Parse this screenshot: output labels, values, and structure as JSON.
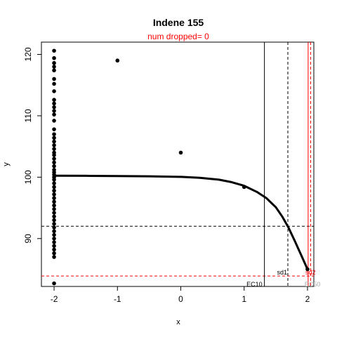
{
  "chart_data": {
    "type": "scatter",
    "title": "Indene 155",
    "subtitle": "num dropped= 0",
    "xlabel": "x",
    "ylabel": "y",
    "xlim": [
      -2.2,
      2.1
    ],
    "ylim": [
      82.2,
      122
    ],
    "x_ticks": [
      -2,
      -1,
      0,
      1,
      2
    ],
    "y_ticks": [
      90,
      100,
      110,
      120
    ],
    "x_tick_labels": [
      "-2",
      "-1",
      "0",
      "1",
      "2"
    ],
    "y_tick_labels": [
      "90",
      "100",
      "110",
      "120"
    ],
    "colors": {
      "points": "#000000",
      "curve": "#000000",
      "reference": "#ff0000",
      "faint": "#aaaaaa"
    },
    "points": [
      {
        "x": -2,
        "y": 120.6
      },
      {
        "x": -2,
        "y": 119.4
      },
      {
        "x": -2,
        "y": 118.6
      },
      {
        "x": -2,
        "y": 118.0
      },
      {
        "x": -2,
        "y": 117.4
      },
      {
        "x": -2,
        "y": 116.0
      },
      {
        "x": -2,
        "y": 115.2
      },
      {
        "x": -2,
        "y": 114.0
      },
      {
        "x": -2,
        "y": 112.6
      },
      {
        "x": -2,
        "y": 112.0
      },
      {
        "x": -2,
        "y": 111.4
      },
      {
        "x": -2,
        "y": 110.8
      },
      {
        "x": -2,
        "y": 110.2
      },
      {
        "x": -2,
        "y": 109.2
      },
      {
        "x": -2,
        "y": 107.8
      },
      {
        "x": -2,
        "y": 107.0
      },
      {
        "x": -2,
        "y": 106.4
      },
      {
        "x": -2,
        "y": 105.8
      },
      {
        "x": -2,
        "y": 105.2
      },
      {
        "x": -2,
        "y": 104.6
      },
      {
        "x": -2,
        "y": 104.0
      },
      {
        "x": -2,
        "y": 103.6
      },
      {
        "x": -2,
        "y": 103.0
      },
      {
        "x": -2,
        "y": 102.4
      },
      {
        "x": -2,
        "y": 101.8
      },
      {
        "x": -2,
        "y": 101.2
      },
      {
        "x": -2,
        "y": 100.8
      },
      {
        "x": -2,
        "y": 100.4
      },
      {
        "x": -2,
        "y": 100.0
      },
      {
        "x": -2,
        "y": 99.6
      },
      {
        "x": -2,
        "y": 99.0
      },
      {
        "x": -2,
        "y": 98.4
      },
      {
        "x": -2,
        "y": 97.8
      },
      {
        "x": -2,
        "y": 97.2
      },
      {
        "x": -2,
        "y": 96.6
      },
      {
        "x": -2,
        "y": 96.0
      },
      {
        "x": -2,
        "y": 95.4
      },
      {
        "x": -2,
        "y": 94.8
      },
      {
        "x": -2,
        "y": 94.2
      },
      {
        "x": -2,
        "y": 93.6
      },
      {
        "x": -2,
        "y": 93.0
      },
      {
        "x": -2,
        "y": 92.4
      },
      {
        "x": -2,
        "y": 91.8
      },
      {
        "x": -2,
        "y": 91.2
      },
      {
        "x": -2,
        "y": 90.6
      },
      {
        "x": -2,
        "y": 90.0
      },
      {
        "x": -2,
        "y": 89.4
      },
      {
        "x": -2,
        "y": 88.8
      },
      {
        "x": -2,
        "y": 88.2
      },
      {
        "x": -2,
        "y": 87.6
      },
      {
        "x": -2,
        "y": 87.0
      },
      {
        "x": -2,
        "y": 82.7
      },
      {
        "x": -1,
        "y": 119.0
      },
      {
        "x": 0,
        "y": 104.0
      },
      {
        "x": 1,
        "y": 98.4
      },
      {
        "x": 2,
        "y": 85.0
      }
    ],
    "fit_curve": [
      {
        "x": -2.0,
        "y": 100.25
      },
      {
        "x": -1.5,
        "y": 100.22
      },
      {
        "x": -1.0,
        "y": 100.18
      },
      {
        "x": -0.5,
        "y": 100.14
      },
      {
        "x": 0.0,
        "y": 100.05
      },
      {
        "x": 0.3,
        "y": 99.9
      },
      {
        "x": 0.6,
        "y": 99.6
      },
      {
        "x": 0.8,
        "y": 99.2
      },
      {
        "x": 1.0,
        "y": 98.6
      },
      {
        "x": 1.2,
        "y": 97.6
      },
      {
        "x": 1.35,
        "y": 96.6
      },
      {
        "x": 1.5,
        "y": 95.1
      },
      {
        "x": 1.6,
        "y": 93.6
      },
      {
        "x": 1.7,
        "y": 91.8
      },
      {
        "x": 1.8,
        "y": 89.6
      },
      {
        "x": 1.9,
        "y": 87.3
      },
      {
        "x": 2.0,
        "y": 85.0
      }
    ],
    "hlines": [
      {
        "y": 92.0,
        "style": "dashed",
        "color": "#000000"
      },
      {
        "y": 83.9,
        "style": "dashed",
        "color": "#ff0000"
      }
    ],
    "vlines": [
      {
        "x": 1.32,
        "style": "solid",
        "color": "#000000",
        "label": "EC10",
        "label_color": "#000000"
      },
      {
        "x": 1.69,
        "style": "dashed",
        "color": "#000000",
        "label": "sd1",
        "label_color": "#000000"
      },
      {
        "x": 2.01,
        "style": "solid",
        "color": "#ff0000",
        "label": "EC50",
        "label_color": "#aaaaaa"
      },
      {
        "x": 2.05,
        "style": "dashed",
        "color": "#ff0000",
        "label": "sd2",
        "label_color": "#ff0000"
      }
    ]
  }
}
